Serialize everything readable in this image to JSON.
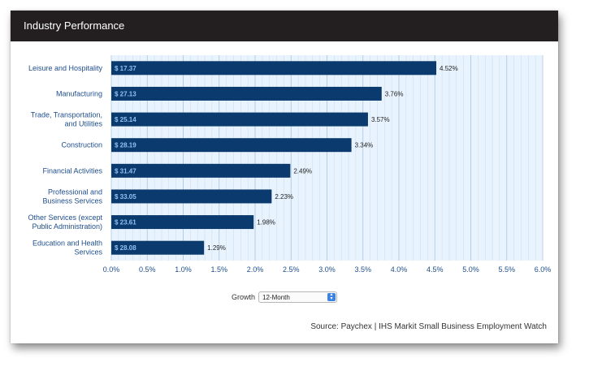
{
  "header": {
    "title": "Industry Performance"
  },
  "controls": {
    "growth_label": "Growth",
    "period_value": "12-Month"
  },
  "source": "Source: Paychex | IHS Markit Small Business Employment Watch",
  "colors": {
    "bar": "#0b3a6e",
    "plot_bg": "#e8f3fd",
    "grid": "#c5dcee",
    "axis_text": "#1f4e8c",
    "header_bg": "#231f20"
  },
  "chart_data": {
    "type": "bar",
    "orientation": "horizontal",
    "title": "Industry Performance",
    "categories": [
      [
        "Leisure and Hospitality"
      ],
      [
        "Manufacturing"
      ],
      [
        "Trade, Transportation,",
        "and Utilities"
      ],
      [
        "Construction"
      ],
      [
        "Financial Activities"
      ],
      [
        "Professional and",
        "Business Services"
      ],
      [
        "Other Services (except",
        "Public Administration)"
      ],
      [
        "Education and Health",
        "Services"
      ]
    ],
    "values": [
      4.52,
      3.76,
      3.57,
      3.34,
      2.49,
      2.23,
      1.98,
      1.29
    ],
    "value_labels": [
      "4.52%",
      "3.76%",
      "3.57%",
      "3.34%",
      "2.49%",
      "2.23%",
      "1.98%",
      "1.29%"
    ],
    "bar_labels": [
      "$ 17.37",
      "$ 27.13",
      "$ 25.14",
      "$ 28.19",
      "$ 31.47",
      "$ 33.05",
      "$ 23.61",
      "$ 28.08"
    ],
    "xlim": [
      0,
      6
    ],
    "xticks": [
      "0.0%",
      "0.5%",
      "1.0%",
      "1.5%",
      "2.0%",
      "2.5%",
      "3.0%",
      "3.5%",
      "4.0%",
      "4.5%",
      "5.0%",
      "5.5%",
      "6.0%"
    ],
    "grid": true,
    "xlabel": "",
    "ylabel": ""
  }
}
